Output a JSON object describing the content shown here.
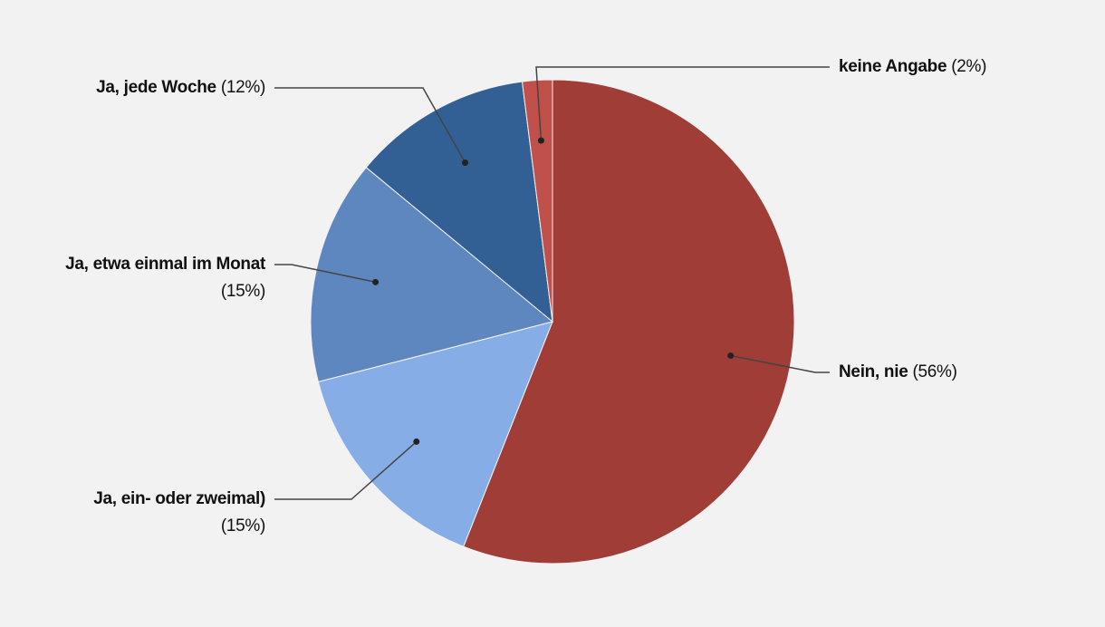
{
  "chart_data": {
    "type": "pie",
    "categories": [
      "Nein, nie",
      "Ja, ein- oder zweimal)",
      "Ja, etwa einmal im Monat",
      "Ja, jede Woche",
      "keine Angabe"
    ],
    "values": [
      56,
      15,
      15,
      12,
      2
    ],
    "value_labels": [
      "(56%)",
      "(15%)",
      "(15%)",
      "(12%)",
      "(2%)"
    ],
    "colors": [
      "#a03d37",
      "#87ade6",
      "#5f87bf",
      "#325f94",
      "#c0504a"
    ]
  }
}
